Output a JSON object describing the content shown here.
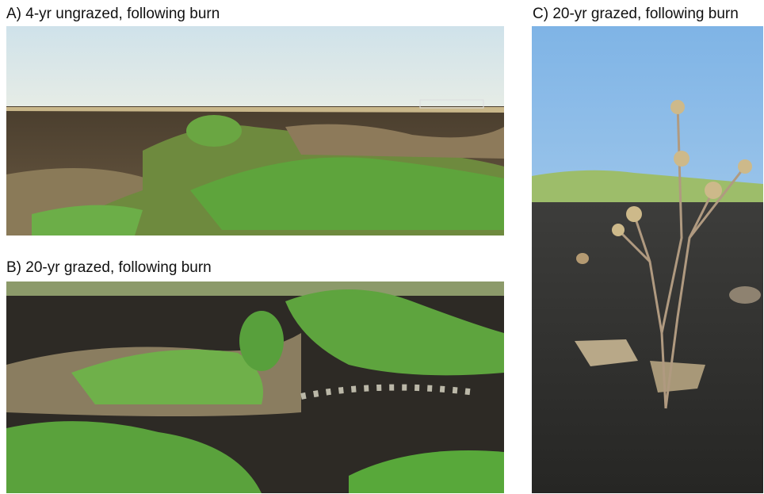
{
  "panels": [
    {
      "label": "A) 4-yr ungrazed, following burn"
    },
    {
      "label": "B) 20-yr grazed, following burn"
    },
    {
      "label": "C) 20-yr grazed, following burn"
    }
  ]
}
